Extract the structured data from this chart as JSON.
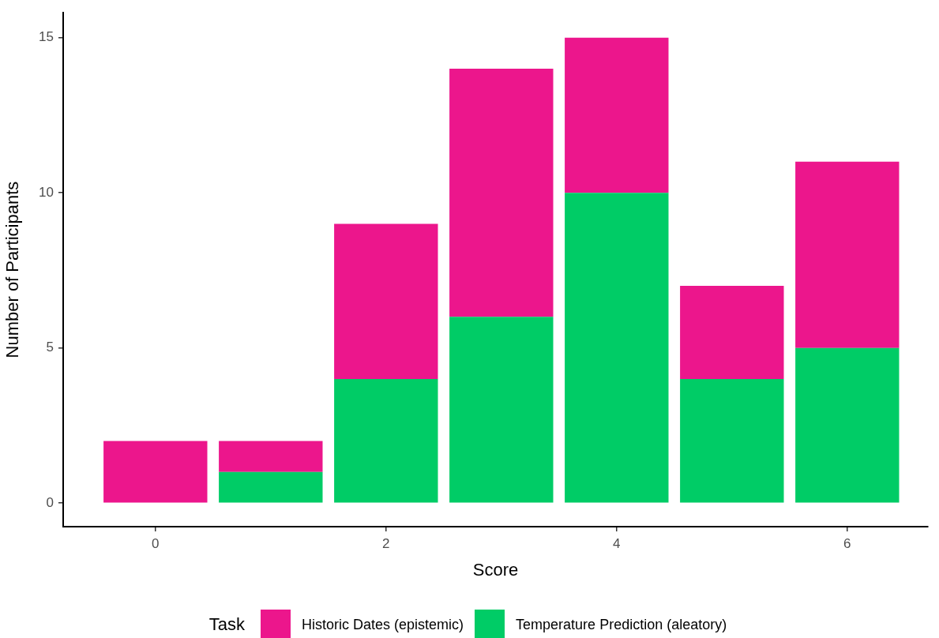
{
  "chart_data": {
    "type": "bar",
    "stacked": true,
    "xlabel": "Score",
    "ylabel": "Number of Participants",
    "legend_title": "Task",
    "legend": "bottom",
    "x": [
      0,
      1,
      2,
      3,
      4,
      5,
      6
    ],
    "series": [
      {
        "name": "Temperature Prediction (aleatory)",
        "color": "#00cc66",
        "values": [
          0,
          1,
          4,
          6,
          10,
          4,
          5
        ]
      },
      {
        "name": "Historic Dates (epistemic)",
        "color": "#ec168c",
        "values": [
          2,
          1,
          5,
          8,
          5,
          3,
          6
        ]
      }
    ],
    "xlim": [
      -0.8,
      6.7
    ],
    "xticks": [
      0,
      2,
      4,
      6
    ],
    "ylim": [
      -0.76,
      15.8
    ],
    "yticks": [
      0,
      5,
      10,
      15
    ],
    "grid": false
  }
}
